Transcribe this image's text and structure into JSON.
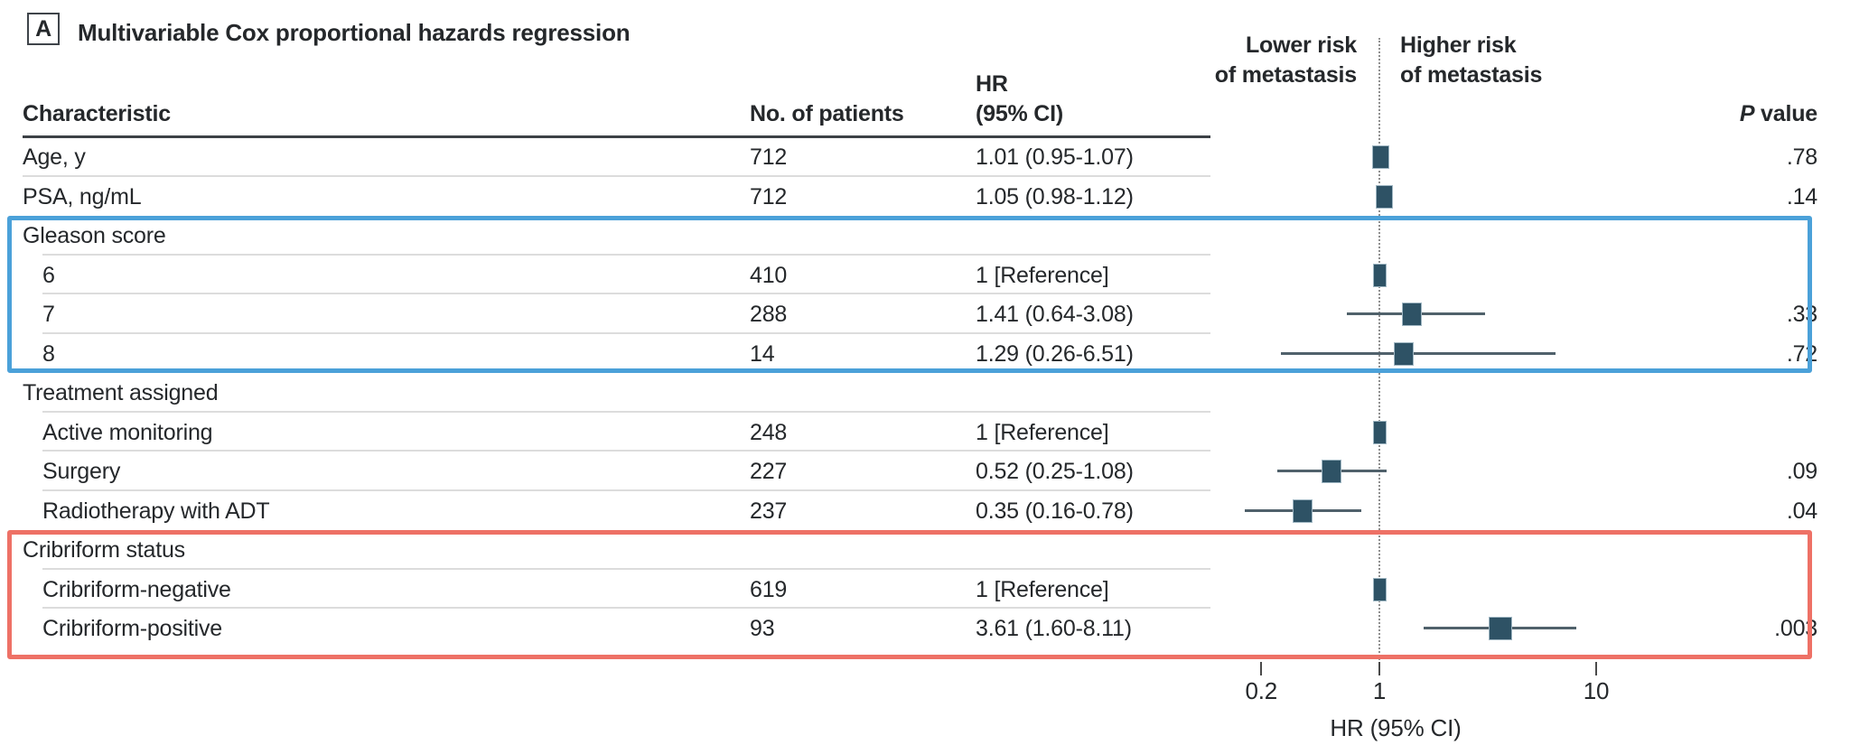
{
  "panel": {
    "label": "A",
    "title": "Multivariable Cox proportional hazards regression"
  },
  "table": {
    "headers": {
      "characteristic": "Characteristic",
      "n": "No. of patients",
      "hr_line1": "HR",
      "hr_line2": "(95% CI)",
      "p_italic": "P",
      "p_rest": " value"
    }
  },
  "axis": {
    "lower_line1": "Lower risk",
    "lower_line2": "of metastasis",
    "higher_line1": "Higher risk",
    "higher_line2": "of metastasis",
    "xlabel": "HR (95% CI)",
    "scale": "log",
    "tick_labels": [
      "0.2",
      "1",
      "10"
    ],
    "tick_values": [
      0.2,
      1,
      10
    ]
  },
  "colors": {
    "marker": "#2E5265",
    "marker_border": "#9FB6C2",
    "ci_line": "#50616B",
    "highlight_blue": "#4BA1D9",
    "highlight_red": "#EE7166",
    "text": "#25282B",
    "header_rule": "#3C4146",
    "separator": "#DCDCDC",
    "dotted_line": "#8F8F8F"
  },
  "chart_data": {
    "type": "scatter",
    "variant": "forest-plot",
    "title": "Multivariable Cox proportional hazards regression",
    "xlabel": "HR (95% CI)",
    "x_scale": "log",
    "x_ticks": [
      0.2,
      1,
      10
    ],
    "x_range": [
      0.12,
      30
    ],
    "rows": [
      {
        "label": "Age, y",
        "indent": false,
        "group": false,
        "n": "712",
        "hr_text": "1.01 (0.95-1.07)",
        "p": ".78",
        "hr": 1.01,
        "lo": 0.95,
        "hi": 1.07,
        "marker_w": 19,
        "sep": true,
        "sep_indent": false
      },
      {
        "label": "PSA, ng/mL",
        "indent": false,
        "group": false,
        "n": "712",
        "hr_text": "1.05 (0.98-1.12)",
        "p": ".14",
        "hr": 1.05,
        "lo": 0.98,
        "hi": 1.12,
        "marker_w": 19,
        "sep": false
      },
      {
        "label": "Gleason score",
        "indent": false,
        "group": true,
        "sep": true,
        "sep_indent": true
      },
      {
        "label": "6",
        "indent": true,
        "group": false,
        "n": "410",
        "hr_text": "1 [Reference]",
        "p": null,
        "hr": 1,
        "lo": null,
        "hi": null,
        "marker_w": 15,
        "sep": true,
        "sep_indent": true
      },
      {
        "label": "7",
        "indent": true,
        "group": false,
        "n": "288",
        "hr_text": "1.41 (0.64-3.08)",
        "p": ".33",
        "hr": 1.41,
        "lo": 0.64,
        "hi": 3.08,
        "marker_w": 22,
        "sep": true,
        "sep_indent": true
      },
      {
        "label": "8",
        "indent": true,
        "group": false,
        "n": "14",
        "hr_text": "1.29 (0.26-6.51)",
        "p": ".72",
        "hr": 1.29,
        "lo": 0.26,
        "hi": 6.51,
        "marker_w": 22,
        "sep": false
      },
      {
        "label": "Treatment assigned",
        "indent": false,
        "group": true,
        "sep": true,
        "sep_indent": true
      },
      {
        "label": "Active monitoring",
        "indent": true,
        "group": false,
        "n": "248",
        "hr_text": "1 [Reference]",
        "p": null,
        "hr": 1,
        "lo": null,
        "hi": null,
        "marker_w": 15,
        "sep": true,
        "sep_indent": true
      },
      {
        "label": "Surgery",
        "indent": true,
        "group": false,
        "n": "227",
        "hr_text": "0.52 (0.25-1.08)",
        "p": ".09",
        "hr": 0.52,
        "lo": 0.25,
        "hi": 1.08,
        "marker_w": 22,
        "sep": true,
        "sep_indent": true
      },
      {
        "label": "Radiotherapy with ADT",
        "indent": true,
        "group": false,
        "n": "237",
        "hr_text": "0.35 (0.16-0.78)",
        "p": ".04",
        "hr": 0.35,
        "lo": 0.16,
        "hi": 0.78,
        "marker_w": 22,
        "sep": false
      },
      {
        "label": "Cribriform status",
        "indent": false,
        "group": true,
        "sep": true,
        "sep_indent": true
      },
      {
        "label": "Cribriform-negative",
        "indent": true,
        "group": false,
        "n": "619",
        "hr_text": "1 [Reference]",
        "p": null,
        "hr": 1,
        "lo": null,
        "hi": null,
        "marker_w": 15,
        "sep": true,
        "sep_indent": true
      },
      {
        "label": "Cribriform-positive",
        "indent": true,
        "group": false,
        "n": "93",
        "hr_text": "3.61 (1.60-8.11)",
        "p": ".003",
        "hr": 3.61,
        "lo": 1.6,
        "hi": 8.11,
        "marker_w": 26,
        "sep": false
      }
    ],
    "highlights": [
      {
        "color_key": "highlight_blue",
        "label": "Gleason score section",
        "row_start": 2,
        "row_end": 5,
        "pad_bottom": 0
      },
      {
        "color_key": "highlight_red",
        "label": "Cribriform status section",
        "row_start": 10,
        "row_end": 12,
        "pad_bottom": 12
      }
    ]
  }
}
